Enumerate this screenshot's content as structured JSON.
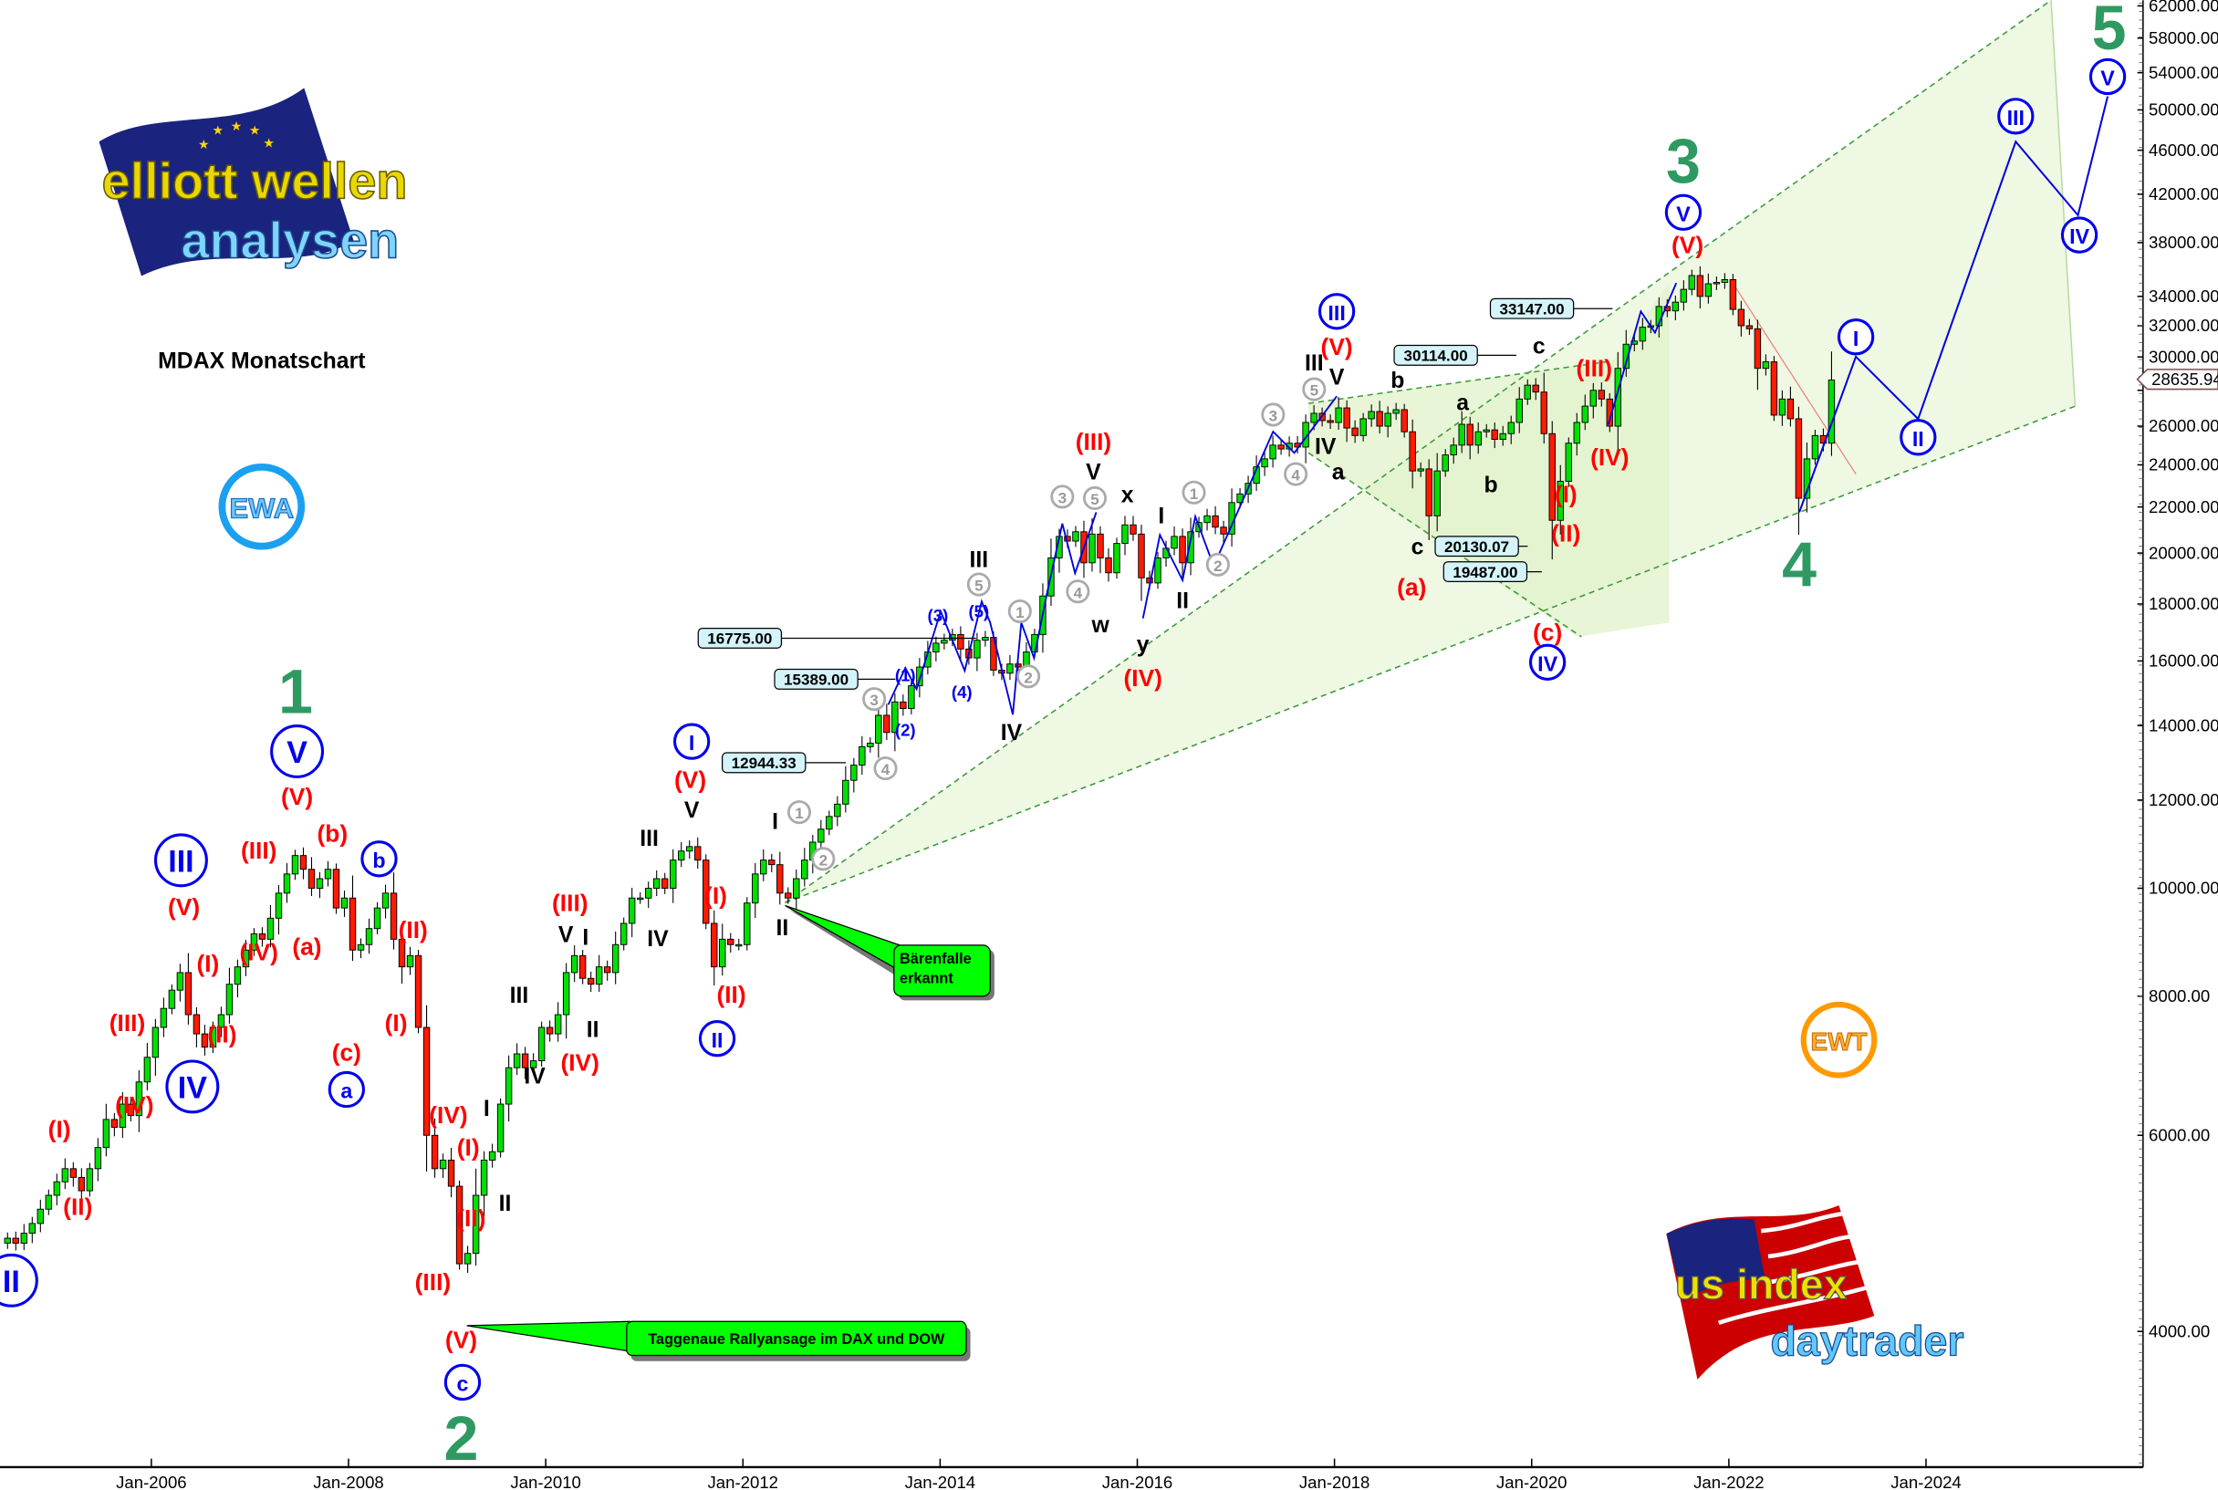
{
  "chart_data": {
    "type": "candlestick",
    "title": "MDAX Monatschart",
    "y_scale": "log",
    "ylim": [
      3400,
      63000
    ],
    "x_range": [
      "2004-07",
      "2025-06"
    ],
    "y_ticks": [
      "62000.00",
      "58000.00",
      "54000.00",
      "50000.00",
      "46000.00",
      "42000.00",
      "38000.00",
      "34000.00",
      "32000.00",
      "30000.00",
      "28000.00",
      "26000.00",
      "24000.00",
      "22000.00",
      "20000.00",
      "18000.00",
      "16000.00",
      "14000.00",
      "12000.00",
      "10000.00",
      "8000.00",
      "6000.00",
      "4000.00"
    ],
    "x_ticks": [
      "Jan-2006",
      "Jan-2008",
      "Jan-2010",
      "Jan-2012",
      "Jan-2014",
      "Jan-2016",
      "Jan-2018",
      "Jan-2020",
      "Jan-2022",
      "Jan-2024"
    ],
    "first_month": "2004-07",
    "monthly_close": [
      4850,
      4800,
      4900,
      5000,
      5150,
      5300,
      5450,
      5600,
      5500,
      5350,
      5600,
      5850,
      6200,
      6100,
      6400,
      6250,
      6700,
      7050,
      7500,
      7800,
      8100,
      8400,
      7700,
      7400,
      7200,
      7500,
      7700,
      8200,
      8500,
      8800,
      9100,
      9000,
      9400,
      9900,
      10300,
      10700,
      10400,
      10000,
      10200,
      10400,
      9600,
      9800,
      8800,
      8900,
      9200,
      9600,
      9900,
      9000,
      8500,
      8700,
      7500,
      6000,
      5600,
      5700,
      5400,
      4600,
      4700,
      5300,
      5700,
      5800,
      6400,
      6900,
      7100,
      6900,
      7000,
      7500,
      7400,
      7700,
      8400,
      8700,
      8300,
      8200,
      8500,
      8400,
      8900,
      9300,
      9800,
      9800,
      10000,
      10200,
      10000,
      10600,
      10800,
      10900,
      10600,
      9300,
      8500,
      9000,
      8900,
      8900,
      9700,
      10300,
      10600,
      10500,
      9900,
      9800,
      10200,
      10600,
      11000,
      11300,
      11600,
      11900,
      12500,
      12900,
      13400,
      13500,
      14300,
      13800,
      14700,
      14500,
      15200,
      15800,
      16300,
      16600,
      16700,
      16900,
      16400,
      16100,
      16700,
      16800,
      15700,
      15600,
      15900,
      15800,
      16300,
      16900,
      18300,
      19800,
      20700,
      20500,
      20900,
      19600,
      20800,
      19800,
      19200,
      20400,
      21200,
      20800,
      19000,
      18800,
      19800,
      20200,
      20700,
      19600,
      20900,
      21300,
      21600,
      21100,
      20800,
      22200,
      22600,
      23100,
      23900,
      24300,
      25000,
      24800,
      25100,
      24900,
      26200,
      26700,
      26300,
      26200,
      27000,
      25900,
      25500,
      26400,
      26800,
      26000,
      26700,
      26900,
      25700,
      23700,
      23800,
      21600,
      23700,
      24500,
      25000,
      26100,
      25000,
      25700,
      25800,
      25300,
      25600,
      26200,
      27500,
      28300,
      27900,
      25600,
      21400,
      23200,
      25100,
      26200,
      27100,
      28000,
      27500,
      26000,
      29300,
      30800,
      31000,
      31900,
      32000,
      33300,
      33000,
      33600,
      34500,
      35500,
      34000,
      34900,
      35000,
      35200,
      33100,
      32000,
      31800,
      29300,
      29700,
      26600,
      27500,
      26400,
      22400,
      24300,
      25500,
      25100,
      28600
    ],
    "current_price": "28635.94",
    "price_boxes": [
      "16775.00",
      "15389.00",
      "12944.33",
      "30114.00",
      "33147.00",
      "20130.07",
      "19487.00"
    ],
    "wave_labels": [
      {
        "text": "II",
        "style": "blue-circle"
      },
      {
        "text": "(I)",
        "style": "red"
      },
      {
        "text": "(II)",
        "style": "red"
      },
      {
        "text": "(III)",
        "style": "red"
      },
      {
        "text": "(IV)",
        "style": "red"
      },
      {
        "text": "(V)",
        "style": "red"
      },
      {
        "text": "III",
        "style": "blue-circle"
      },
      {
        "text": "IV",
        "style": "blue-circle"
      },
      {
        "text": "(I)",
        "style": "red"
      },
      {
        "text": "(II)",
        "style": "red"
      },
      {
        "text": "(IV)",
        "style": "red"
      },
      {
        "text": "(III)",
        "style": "red"
      },
      {
        "text": "(a)",
        "style": "red"
      },
      {
        "text": "(V)",
        "style": "red"
      },
      {
        "text": "V",
        "style": "blue-circle"
      },
      {
        "text": "1",
        "style": "green"
      },
      {
        "text": "(b)",
        "style": "red"
      },
      {
        "text": "b",
        "style": "blue-circle"
      },
      {
        "text": "(c)",
        "style": "red"
      },
      {
        "text": "a",
        "style": "blue-circle"
      },
      {
        "text": "(II)",
        "style": "red"
      },
      {
        "text": "(I)",
        "style": "red"
      },
      {
        "text": "(IV)",
        "style": "red"
      },
      {
        "text": "(III)",
        "style": "red"
      },
      {
        "text": "(I)",
        "style": "red"
      },
      {
        "text": "(II)",
        "style": "red"
      },
      {
        "text": "II",
        "style": "black"
      },
      {
        "text": "I",
        "style": "black"
      },
      {
        "text": "(V)",
        "style": "red"
      },
      {
        "text": "c",
        "style": "blue-circle"
      },
      {
        "text": "2",
        "style": "green"
      },
      {
        "text": "III",
        "style": "black"
      },
      {
        "text": "V",
        "style": "black"
      },
      {
        "text": "I",
        "style": "black"
      },
      {
        "text": "II",
        "style": "black"
      },
      {
        "text": "IV",
        "style": "black"
      },
      {
        "text": "(IV)",
        "style": "red"
      },
      {
        "text": "(III)",
        "style": "red"
      },
      {
        "text": "III",
        "style": "black"
      },
      {
        "text": "IV",
        "style": "black"
      },
      {
        "text": "V",
        "style": "black"
      },
      {
        "text": "(V)",
        "style": "red"
      },
      {
        "text": "I",
        "style": "blue-circle"
      },
      {
        "text": "(I)",
        "style": "red"
      },
      {
        "text": "(II)",
        "style": "red"
      },
      {
        "text": "II",
        "style": "blue-circle"
      },
      {
        "text": "I",
        "style": "black"
      },
      {
        "text": "II",
        "style": "black"
      },
      {
        "text": "1",
        "style": "gray-circle"
      },
      {
        "text": "2",
        "style": "gray-circle"
      },
      {
        "text": "3",
        "style": "gray-circle"
      },
      {
        "text": "4",
        "style": "gray-circle"
      },
      {
        "text": "(1)",
        "style": "blue"
      },
      {
        "text": "(2)",
        "style": "blue"
      },
      {
        "text": "(3)",
        "style": "blue"
      },
      {
        "text": "(4)",
        "style": "blue"
      },
      {
        "text": "(5)",
        "style": "blue"
      },
      {
        "text": "5",
        "style": "gray-circle"
      },
      {
        "text": "III",
        "style": "black"
      },
      {
        "text": "1",
        "style": "gray-circle"
      },
      {
        "text": "2",
        "style": "gray-circle"
      },
      {
        "text": "IV",
        "style": "black"
      },
      {
        "text": "3",
        "style": "gray-circle"
      },
      {
        "text": "5",
        "style": "gray-circle"
      },
      {
        "text": "4",
        "style": "gray-circle"
      },
      {
        "text": "V",
        "style": "black"
      },
      {
        "text": "(III)",
        "style": "red"
      },
      {
        "text": "w",
        "style": "black"
      },
      {
        "text": "x",
        "style": "black"
      },
      {
        "text": "y",
        "style": "black"
      },
      {
        "text": "(IV)",
        "style": "red"
      },
      {
        "text": "I",
        "style": "black"
      },
      {
        "text": "1",
        "style": "gray-circle"
      },
      {
        "text": "2",
        "style": "gray-circle"
      },
      {
        "text": "II",
        "style": "black"
      },
      {
        "text": "3",
        "style": "gray-circle"
      },
      {
        "text": "4",
        "style": "gray-circle"
      },
      {
        "text": "5",
        "style": "gray-circle"
      },
      {
        "text": "III",
        "style": "black"
      },
      {
        "text": "IV",
        "style": "black"
      },
      {
        "text": "V",
        "style": "black"
      },
      {
        "text": "(V)",
        "style": "red"
      },
      {
        "text": "III",
        "style": "blue-circle"
      },
      {
        "text": "a",
        "style": "black"
      },
      {
        "text": "b",
        "style": "black"
      },
      {
        "text": "a",
        "style": "black"
      },
      {
        "text": "b",
        "style": "black"
      },
      {
        "text": "c",
        "style": "black"
      },
      {
        "text": "(a)",
        "style": "red"
      },
      {
        "text": "c",
        "style": "black"
      },
      {
        "text": "(I)",
        "style": "red"
      },
      {
        "text": "(II)",
        "style": "red"
      },
      {
        "text": "(III)",
        "style": "red"
      },
      {
        "text": "(IV)",
        "style": "red"
      },
      {
        "text": "(c)",
        "style": "red"
      },
      {
        "text": "IV",
        "style": "blue-circle"
      },
      {
        "text": "3",
        "style": "green"
      },
      {
        "text": "V",
        "style": "blue-circle"
      },
      {
        "text": "(V)",
        "style": "red"
      },
      {
        "text": "4",
        "style": "green"
      },
      {
        "text": "I",
        "style": "blue-circle"
      },
      {
        "text": "II",
        "style": "blue-circle"
      },
      {
        "text": "III",
        "style": "blue-circle"
      },
      {
        "text": "IV",
        "style": "blue-circle"
      },
      {
        "text": "V",
        "style": "blue-circle"
      },
      {
        "text": "5",
        "style": "green"
      }
    ],
    "callouts": [
      "Bärenfalle erkannt",
      "Taggenaue Rallyansage im DAX und DOW"
    ],
    "colors": {
      "up": "#00e000",
      "down": "#ff1a00",
      "wave_green": "#2e9a62",
      "wave_red": "#ff0000",
      "wave_blue": "#0000ee",
      "channel": "#e6f5d0",
      "callout": "#00ff00"
    }
  },
  "branding": {
    "logo_top": {
      "line1": "elliott wellen",
      "line2": "analysen"
    },
    "badge_left": "EWA",
    "badge_right": "EWT",
    "logo_bottom": {
      "line1": "us index",
      "line2": "daytrader"
    }
  }
}
